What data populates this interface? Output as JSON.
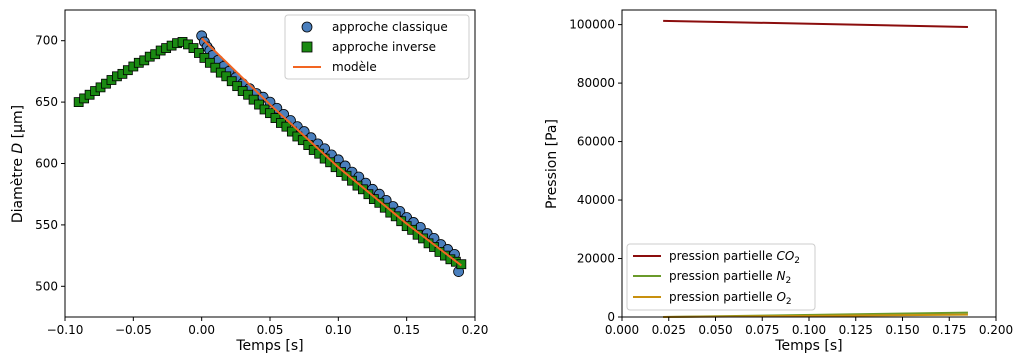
{
  "chart_data": [
    {
      "type": "scatter",
      "title": "",
      "xlabel": "Temps [s]",
      "ylabel_prefix": "Diamètre ",
      "ylabel_var": "D",
      "ylabel_suffix": " [μm]",
      "xlim": [
        -0.1,
        0.2
      ],
      "ylim": [
        475,
        725
      ],
      "xticks": [
        "−0.10",
        "−0.05",
        "0.00",
        "0.05",
        "0.10",
        "0.15",
        "0.20"
      ],
      "xtick_values": [
        -0.1,
        -0.05,
        0.0,
        0.05,
        0.1,
        0.15,
        0.2
      ],
      "yticks": [
        "500",
        "550",
        "600",
        "650",
        "700"
      ],
      "ytick_values": [
        500,
        550,
        600,
        650,
        700
      ],
      "grid": false,
      "legend_position": "top-right",
      "series": [
        {
          "name": "approche classique",
          "marker": "circle",
          "color": "#4a7fbd",
          "x": [
            0.0,
            0.002,
            0.004,
            0.006,
            0.008,
            0.012,
            0.016,
            0.02,
            0.025,
            0.03,
            0.035,
            0.04,
            0.045,
            0.05,
            0.055,
            0.06,
            0.065,
            0.07,
            0.075,
            0.08,
            0.085,
            0.09,
            0.095,
            0.1,
            0.105,
            0.11,
            0.115,
            0.12,
            0.125,
            0.13,
            0.135,
            0.14,
            0.145,
            0.15,
            0.155,
            0.16,
            0.165,
            0.17,
            0.175,
            0.18,
            0.185,
            0.188
          ],
          "y": [
            704,
            699,
            695,
            692,
            688,
            684,
            679,
            675,
            670,
            665,
            661,
            657,
            654,
            650,
            645,
            640,
            635,
            630,
            626,
            621,
            616,
            612,
            607,
            603,
            598,
            593,
            589,
            584,
            579,
            575,
            570,
            565,
            561,
            556,
            552,
            548,
            543,
            539,
            534,
            530,
            526,
            512
          ]
        },
        {
          "name": "approche inverse",
          "marker": "square",
          "color": "#1a8a12",
          "x": [
            -0.09,
            -0.086,
            -0.082,
            -0.078,
            -0.074,
            -0.07,
            -0.066,
            -0.062,
            -0.058,
            -0.054,
            -0.05,
            -0.046,
            -0.042,
            -0.038,
            -0.034,
            -0.03,
            -0.026,
            -0.022,
            -0.018,
            -0.014,
            -0.01,
            -0.006,
            -0.002,
            0.002,
            0.006,
            0.01,
            0.014,
            0.018,
            0.022,
            0.026,
            0.03,
            0.034,
            0.038,
            0.042,
            0.046,
            0.05,
            0.054,
            0.058,
            0.062,
            0.066,
            0.07,
            0.074,
            0.078,
            0.082,
            0.086,
            0.09,
            0.094,
            0.098,
            0.102,
            0.106,
            0.11,
            0.114,
            0.118,
            0.122,
            0.126,
            0.13,
            0.134,
            0.138,
            0.142,
            0.146,
            0.15,
            0.154,
            0.158,
            0.162,
            0.166,
            0.17,
            0.174,
            0.178,
            0.182,
            0.186,
            0.19
          ],
          "y": [
            650,
            653,
            656,
            659,
            662,
            665,
            668,
            671,
            673,
            676,
            679,
            682,
            684,
            687,
            689,
            692,
            694,
            696,
            698,
            699,
            697,
            694,
            690,
            686,
            682,
            678,
            674,
            671,
            667,
            663,
            659,
            656,
            652,
            648,
            644,
            641,
            637,
            633,
            630,
            626,
            622,
            619,
            615,
            611,
            608,
            604,
            601,
            597,
            593,
            590,
            586,
            582,
            579,
            575,
            571,
            568,
            564,
            560,
            557,
            553,
            549,
            546,
            542,
            539,
            535,
            532,
            528,
            525,
            522,
            520,
            518
          ]
        },
        {
          "name": "modèle",
          "marker": "line",
          "color": "#f26522",
          "x": [
            0.0,
            0.05,
            0.1,
            0.15,
            0.19
          ],
          "y": [
            702,
            648,
            597,
            551,
            517
          ]
        }
      ]
    },
    {
      "type": "line",
      "title": "",
      "xlabel": "Temps [s]",
      "ylabel": "Pression [Pa]",
      "xlim": [
        0.0,
        0.2
      ],
      "ylim": [
        0,
        105000
      ],
      "xticks": [
        "0.000",
        "0.025",
        "0.050",
        "0.075",
        "0.100",
        "0.125",
        "0.150",
        "0.175",
        "0.200"
      ],
      "xtick_values": [
        0.0,
        0.025,
        0.05,
        0.075,
        0.1,
        0.125,
        0.15,
        0.175,
        0.2
      ],
      "yticks": [
        "0",
        "20000",
        "40000",
        "60000",
        "80000",
        "100000"
      ],
      "ytick_values": [
        0,
        20000,
        40000,
        60000,
        80000,
        100000
      ],
      "grid": false,
      "legend_position": "bottom-left",
      "series": [
        {
          "name_prefix": "pression partielle ",
          "name_var": "CO",
          "name_sub": "2",
          "color": "#8b0d0d",
          "x": [
            0.022,
            0.185
          ],
          "y": [
            101300,
            99200
          ]
        },
        {
          "name_prefix": "pression partielle ",
          "name_var": "N",
          "name_sub": "2",
          "color": "#6a9a2a",
          "x": [
            0.022,
            0.185
          ],
          "y": [
            0,
            1500
          ]
        },
        {
          "name_prefix": "pression partielle ",
          "name_var": "O",
          "name_sub": "2",
          "color": "#c8900e",
          "x": [
            0.022,
            0.185
          ],
          "y": [
            0,
            800
          ]
        }
      ]
    }
  ]
}
